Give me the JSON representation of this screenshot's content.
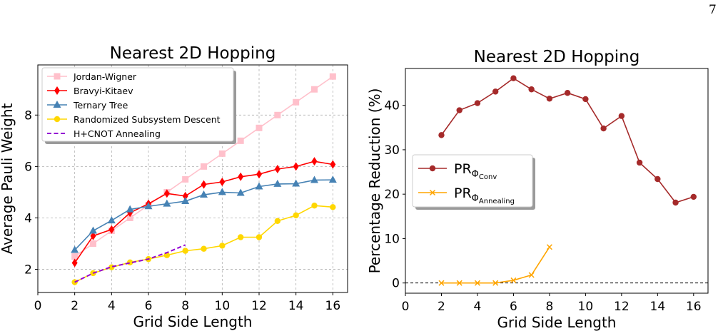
{
  "page_number": "7",
  "chart_data": [
    {
      "type": "line",
      "title": "Nearest 2D Hopping",
      "xlabel": "Grid Side Length",
      "ylabel": "Average Pauli Weight",
      "xlim": [
        0,
        16.8
      ],
      "ylim": [
        1.1,
        9.95
      ],
      "xticks": [
        0,
        2,
        4,
        6,
        8,
        10,
        12,
        14,
        16
      ],
      "yticks": [
        2,
        4,
        6,
        8
      ],
      "grid": true,
      "legend_position": "top-left",
      "series": [
        {
          "name": "Jordan-Wigner",
          "color": "#ffc0cb",
          "marker": "square",
          "x": [
            2,
            3,
            4,
            5,
            6,
            7,
            8,
            9,
            10,
            11,
            12,
            13,
            14,
            15,
            16
          ],
          "y": [
            2.5,
            3.0,
            3.5,
            4.0,
            4.5,
            5.0,
            5.5,
            6.0,
            6.5,
            7.0,
            7.5,
            8.0,
            8.5,
            9.0,
            9.5
          ]
        },
        {
          "name": "Bravyi-Kitaev",
          "color": "#ff0000",
          "marker": "diamond",
          "x": [
            2,
            3,
            4,
            5,
            6,
            7,
            8,
            9,
            10,
            11,
            12,
            13,
            14,
            15,
            16
          ],
          "y": [
            2.25,
            3.3,
            3.55,
            4.2,
            4.55,
            4.95,
            4.85,
            5.3,
            5.4,
            5.6,
            5.7,
            5.9,
            6.0,
            6.2,
            6.08
          ]
        },
        {
          "name": "Ternary Tree",
          "color": "#4682b4",
          "marker": "triangle",
          "x": [
            2,
            3,
            4,
            5,
            6,
            7,
            8,
            9,
            10,
            11,
            12,
            13,
            14,
            15,
            16
          ],
          "y": [
            2.75,
            3.5,
            3.9,
            4.33,
            4.45,
            4.55,
            4.65,
            4.9,
            5.0,
            4.97,
            5.22,
            5.32,
            5.33,
            5.47,
            5.48
          ]
        },
        {
          "name": "Randomized Subsystem Descent",
          "color": "#ffd700",
          "marker": "circle",
          "x": [
            2,
            3,
            4,
            5,
            6,
            7,
            8,
            9,
            10,
            11,
            12,
            13,
            14,
            15,
            16
          ],
          "y": [
            1.5,
            1.85,
            2.08,
            2.27,
            2.4,
            2.55,
            2.72,
            2.8,
            2.92,
            3.25,
            3.25,
            3.88,
            4.1,
            4.48,
            4.42
          ]
        },
        {
          "name": "H+CNOT Annealing",
          "color": "#9400d3",
          "marker": "none",
          "dashed": true,
          "x": [
            2,
            3,
            4,
            5,
            6,
            7,
            8
          ],
          "y": [
            1.5,
            1.85,
            2.1,
            2.25,
            2.4,
            2.65,
            2.95
          ]
        }
      ]
    },
    {
      "type": "line",
      "title": "Nearest 2D Hopping",
      "xlabel": "Grid Side Length",
      "ylabel": "Percentage Reduction (%)",
      "xlim": [
        0,
        16.8
      ],
      "ylim": [
        -2.3,
        48.3
      ],
      "xticks": [
        0,
        2,
        4,
        6,
        8,
        10,
        12,
        14,
        16
      ],
      "yticks": [
        0,
        10,
        20,
        30,
        40
      ],
      "grid": false,
      "reference_line_y": 0,
      "legend_position": "center-left",
      "series": [
        {
          "name": "PR",
          "subscript": "Φ",
          "subsubscript": "Conv",
          "color": "#a52a2a",
          "marker": "circle",
          "x": [
            2,
            3,
            4,
            5,
            6,
            7,
            8,
            9,
            10,
            11,
            12,
            13,
            14,
            15,
            16
          ],
          "y": [
            33.3,
            38.9,
            40.5,
            43.1,
            46.1,
            43.6,
            41.5,
            42.8,
            41.4,
            34.8,
            37.6,
            27.1,
            23.4,
            18.1,
            19.4
          ]
        },
        {
          "name": "PR",
          "subscript": "Φ",
          "subsubscript": "Annealing",
          "color": "#ffa500",
          "marker": "x",
          "x": [
            2,
            3,
            4,
            5,
            6,
            7,
            8
          ],
          "y": [
            0.0,
            0.0,
            0.0,
            0.0,
            0.6,
            1.8,
            8.1
          ]
        }
      ]
    }
  ]
}
